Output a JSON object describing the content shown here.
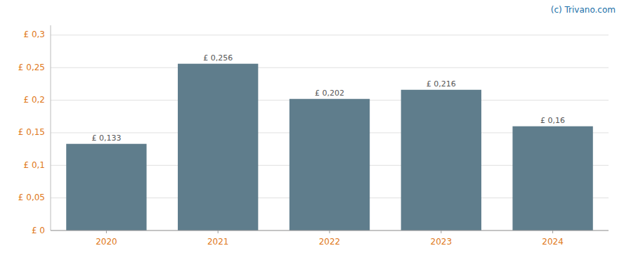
{
  "chart_data": {
    "type": "bar",
    "categories": [
      "2020",
      "2021",
      "2022",
      "2023",
      "2024"
    ],
    "values": [
      0.133,
      0.256,
      0.202,
      0.216,
      0.16
    ],
    "value_labels": [
      "£ 0,133",
      "£ 0,256",
      "£ 0,202",
      "£ 0,216",
      "£ 0,16"
    ],
    "data_labels": true,
    "color": "#5f7d8c",
    "ylim": [
      0,
      0.315
    ],
    "yticks": [
      {
        "value": 0,
        "label": "£ 0"
      },
      {
        "value": 0.05,
        "label": "£ 0,05"
      },
      {
        "value": 0.1,
        "label": "£ 0,1"
      },
      {
        "value": 0.15,
        "label": "£ 0,15"
      },
      {
        "value": 0.2,
        "label": "£ 0,2"
      },
      {
        "value": 0.25,
        "label": "£ 0,25"
      },
      {
        "value": 0.3,
        "label": "£ 0,3"
      }
    ],
    "grid": true,
    "annotations": [
      "(c) Trivano.com"
    ]
  }
}
